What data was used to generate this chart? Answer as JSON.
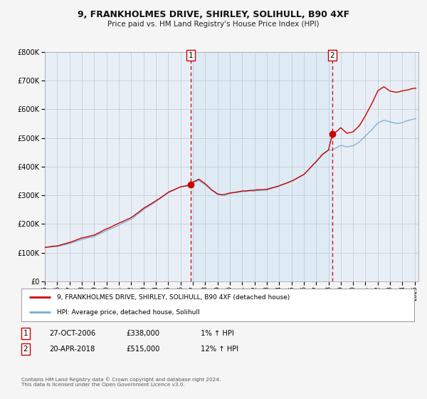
{
  "title": "9, FRANKHOLMES DRIVE, SHIRLEY, SOLIHULL, B90 4XF",
  "subtitle": "Price paid vs. HM Land Registry's House Price Index (HPI)",
  "x_start_year": 1995,
  "x_end_year": 2025,
  "y_min": 0,
  "y_max": 800000,
  "y_ticks": [
    0,
    100000,
    200000,
    300000,
    400000,
    500000,
    600000,
    700000,
    800000
  ],
  "y_tick_labels": [
    "£0",
    "£100K",
    "£200K",
    "£300K",
    "£400K",
    "£500K",
    "£600K",
    "£700K",
    "£800K"
  ],
  "hpi_line_color": "#7aadd4",
  "price_line_color": "#cc0000",
  "sale1_year": 2006.82,
  "sale1_price": 338000,
  "sale1_date": "27-OCT-2006",
  "sale1_hpi_pct": "1%",
  "sale2_year": 2018.3,
  "sale2_price": 515000,
  "sale2_date": "20-APR-2018",
  "sale2_hpi_pct": "12%",
  "shaded_region_color": "#deeaf4",
  "background_color": "#f0f4f8",
  "plot_bg_color": "#e8eef5",
  "grid_color": "#c0c8d0",
  "legend_label_price": "9, FRANKHOLMES DRIVE, SHIRLEY, SOLIHULL, B90 4XF (detached house)",
  "legend_label_hpi": "HPI: Average price, detached house, Solihull",
  "footnote": "Contains HM Land Registry data © Crown copyright and database right 2024.\nThis data is licensed under the Open Government Licence v3.0.",
  "marker_color": "#cc0000",
  "vline_color": "#cc0000"
}
